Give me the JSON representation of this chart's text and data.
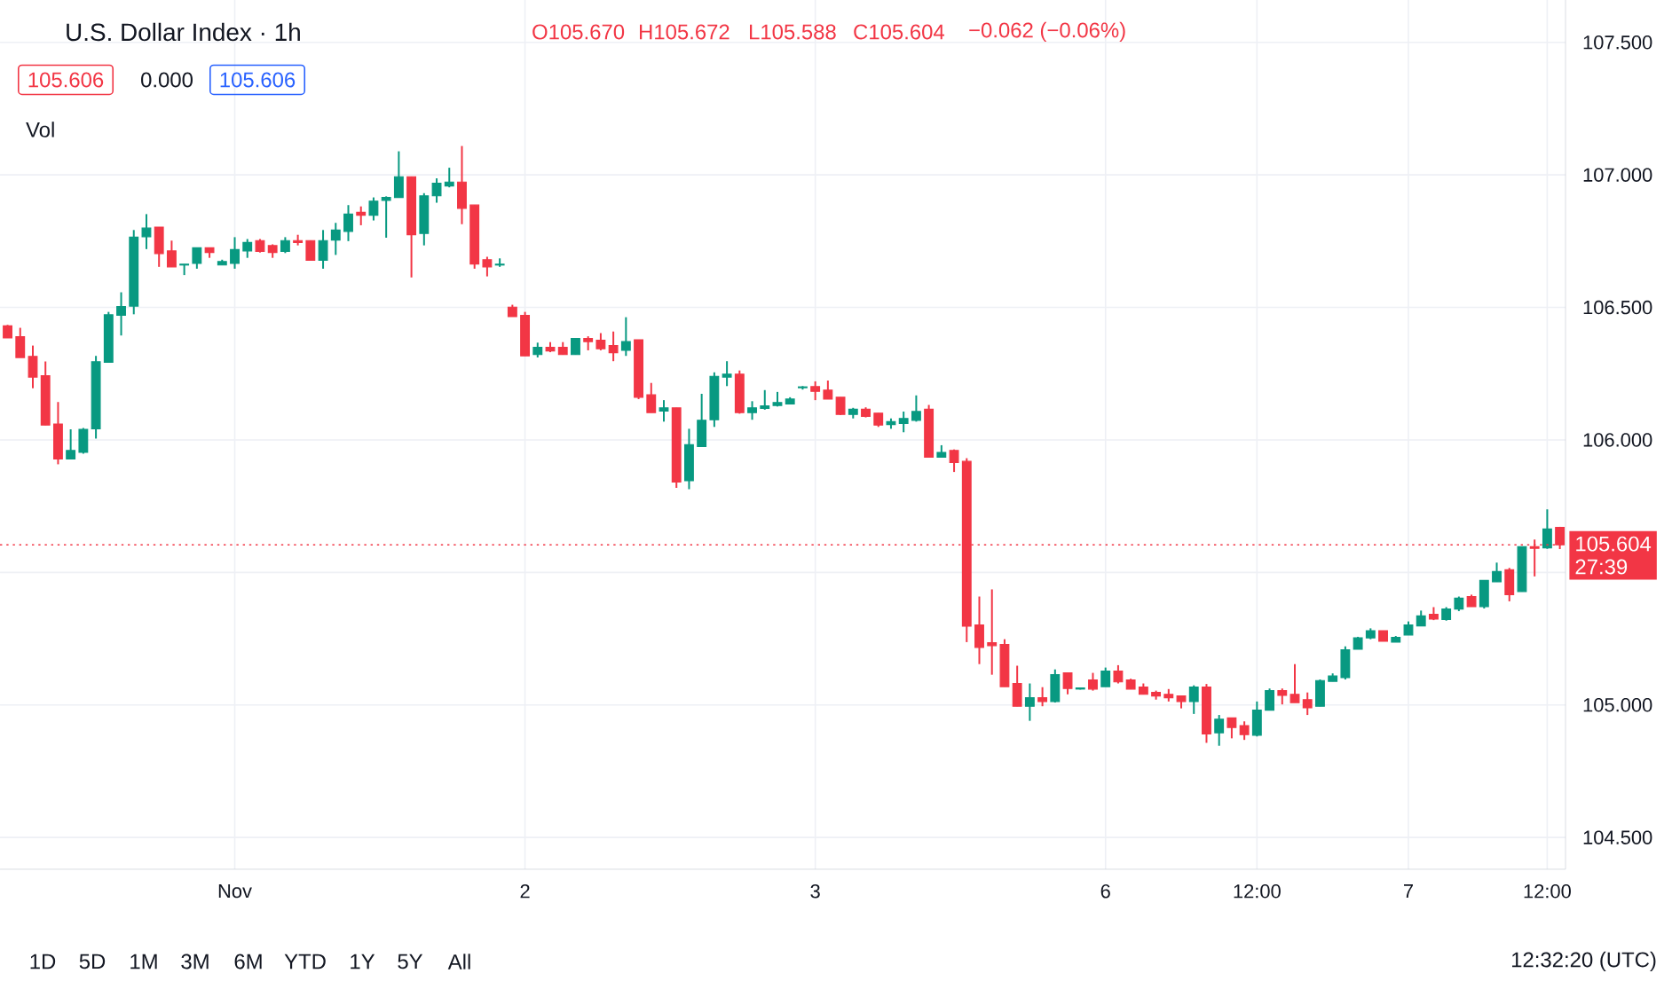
{
  "chart_data": {
    "type": "candlestick",
    "title": "U.S. Dollar Index · 1h",
    "categories": [
      null,
      null,
      null,
      null,
      null,
      null,
      null,
      null,
      null,
      null,
      null,
      null,
      null,
      null,
      null,
      null,
      null,
      null,
      "Nov",
      null,
      null,
      null,
      null,
      null,
      null,
      null,
      null,
      null,
      null,
      null,
      null,
      null,
      null,
      null,
      null,
      null,
      null,
      null,
      null,
      null,
      null,
      "2",
      null,
      null,
      null,
      null,
      null,
      null,
      null,
      null,
      null,
      null,
      null,
      null,
      null,
      null,
      null,
      null,
      null,
      null,
      null,
      null,
      null,
      null,
      "3",
      null,
      null,
      null,
      null,
      null,
      null,
      null,
      null,
      null,
      null,
      null,
      null,
      null,
      null,
      null,
      null,
      null,
      null,
      null,
      null,
      null,
      null,
      "6",
      null,
      null,
      null,
      null,
      null,
      null,
      null,
      null,
      null,
      null,
      null,
      "12:00",
      null,
      null,
      null,
      null,
      null,
      null,
      null,
      null,
      null,
      null,
      null,
      "7",
      null,
      null,
      null,
      null,
      null,
      null,
      null,
      null,
      null,
      null,
      "12:00",
      null
    ],
    "ohlc": [
      [
        106.43,
        106.434,
        106.385,
        106.385
      ],
      [
        106.389,
        106.423,
        106.311,
        106.311
      ],
      [
        106.315,
        106.356,
        106.195,
        106.237
      ],
      [
        106.242,
        106.296,
        106.056,
        106.056
      ],
      [
        106.06,
        106.143,
        105.908,
        105.928
      ],
      [
        105.928,
        106.04,
        105.928,
        105.96
      ],
      [
        105.953,
        106.045,
        105.948,
        106.04
      ],
      [
        106.042,
        106.317,
        106.005,
        106.295
      ],
      [
        106.293,
        106.483,
        106.293,
        106.472
      ],
      [
        106.47,
        106.557,
        106.394,
        106.503
      ],
      [
        106.505,
        106.792,
        106.474,
        106.765
      ],
      [
        106.767,
        106.852,
        106.72,
        106.799
      ],
      [
        106.803,
        106.803,
        106.653,
        106.703
      ],
      [
        106.713,
        106.752,
        106.653,
        106.653
      ],
      [
        106.66,
        106.663,
        106.622,
        106.663
      ],
      [
        106.666,
        106.725,
        106.646,
        106.725
      ],
      [
        106.725,
        106.725,
        106.687,
        106.707
      ],
      [
        106.66,
        106.68,
        106.66,
        106.673
      ],
      [
        106.666,
        106.765,
        106.646,
        106.718
      ],
      [
        106.713,
        106.758,
        106.687,
        106.745
      ],
      [
        106.752,
        106.758,
        106.707,
        106.711
      ],
      [
        106.733,
        106.738,
        106.687,
        106.707
      ],
      [
        106.711,
        106.765,
        106.705,
        106.752
      ],
      [
        106.752,
        106.774,
        106.734,
        106.745
      ],
      [
        106.752,
        106.752,
        106.678,
        106.678
      ],
      [
        106.678,
        106.792,
        106.646,
        106.752
      ],
      [
        106.754,
        106.819,
        106.698,
        106.792
      ],
      [
        106.787,
        106.886,
        106.75,
        106.852
      ],
      [
        106.859,
        106.881,
        106.81,
        106.848
      ],
      [
        106.848,
        106.915,
        106.828,
        106.901
      ],
      [
        106.904,
        106.919,
        106.763,
        106.915
      ],
      [
        106.915,
        107.089,
        106.915,
        106.993
      ],
      [
        106.993,
        106.993,
        106.613,
        106.774
      ],
      [
        106.779,
        106.931,
        106.734,
        106.921
      ],
      [
        106.921,
        106.987,
        106.895,
        106.968
      ],
      [
        106.958,
        107.027,
        106.953,
        106.973
      ],
      [
        106.973,
        107.109,
        106.814,
        106.874
      ],
      [
        106.886,
        106.886,
        106.646,
        106.664
      ],
      [
        106.68,
        106.691,
        106.617,
        106.653
      ],
      [
        106.66,
        106.685,
        106.653,
        106.663
      ],
      [
        106.501,
        106.51,
        106.465,
        106.465
      ],
      [
        106.47,
        106.483,
        106.317,
        106.317
      ],
      [
        106.322,
        106.367,
        106.311,
        106.349
      ],
      [
        106.349,
        106.369,
        106.331,
        106.336
      ],
      [
        106.349,
        106.369,
        106.322,
        106.322
      ],
      [
        106.322,
        106.383,
        106.322,
        106.383
      ],
      [
        106.383,
        106.391,
        106.338,
        106.371
      ],
      [
        106.376,
        106.403,
        106.338,
        106.344
      ],
      [
        106.356,
        106.409,
        106.297,
        106.329
      ],
      [
        106.338,
        106.463,
        106.317,
        106.371
      ],
      [
        106.378,
        106.378,
        106.154,
        106.161
      ],
      [
        106.17,
        106.215,
        106.103,
        106.103
      ],
      [
        106.109,
        106.15,
        106.069,
        106.121
      ],
      [
        106.121,
        106.121,
        105.819,
        105.841
      ],
      [
        105.846,
        106.042,
        105.814,
        105.982
      ],
      [
        105.975,
        106.174,
        105.975,
        106.074
      ],
      [
        106.076,
        106.255,
        106.049,
        106.24
      ],
      [
        106.237,
        106.297,
        106.203,
        106.248
      ],
      [
        106.248,
        106.262,
        106.099,
        106.103
      ],
      [
        106.103,
        106.146,
        106.076,
        106.121
      ],
      [
        106.119,
        106.188,
        106.114,
        106.128
      ],
      [
        106.13,
        106.181,
        106.126,
        106.141
      ],
      [
        106.136,
        106.161,
        106.134,
        106.154
      ],
      [
        106.197,
        106.203,
        106.19,
        106.2
      ],
      [
        106.201,
        106.221,
        106.15,
        106.183
      ],
      [
        106.188,
        106.224,
        106.154,
        106.154
      ],
      [
        106.161,
        106.161,
        106.094,
        106.096
      ],
      [
        106.096,
        106.121,
        106.081,
        106.116
      ],
      [
        106.116,
        106.123,
        106.085,
        106.089
      ],
      [
        106.101,
        106.101,
        106.049,
        106.056
      ],
      [
        106.058,
        106.081,
        106.042,
        106.069
      ],
      [
        106.062,
        106.107,
        106.029,
        106.081
      ],
      [
        106.074,
        106.168,
        106.069,
        106.107
      ],
      [
        106.116,
        106.132,
        105.935,
        105.935
      ],
      [
        105.935,
        105.98,
        105.935,
        105.953
      ],
      [
        105.96,
        105.964,
        105.879,
        105.915
      ],
      [
        105.919,
        105.931,
        105.237,
        105.297
      ],
      [
        105.302,
        105.409,
        105.154,
        105.217
      ],
      [
        105.235,
        105.436,
        105.114,
        105.224
      ],
      [
        105.228,
        105.248,
        105.069,
        105.069
      ],
      [
        105.081,
        105.148,
        104.995,
        104.995
      ],
      [
        104.995,
        105.081,
        104.94,
        105.027
      ],
      [
        105.027,
        105.067,
        104.995,
        105.013
      ],
      [
        105.013,
        105.134,
        105.009,
        105.114
      ],
      [
        105.121,
        105.121,
        105.04,
        105.062
      ],
      [
        105.06,
        105.066,
        105.058,
        105.064
      ],
      [
        105.094,
        105.121,
        105.054,
        105.06
      ],
      [
        105.069,
        105.141,
        105.069,
        105.128
      ],
      [
        105.128,
        105.15,
        105.081,
        105.087
      ],
      [
        105.094,
        105.099,
        105.06,
        105.06
      ],
      [
        105.067,
        105.081,
        105.04,
        105.04
      ],
      [
        105.047,
        105.054,
        105.02,
        105.034
      ],
      [
        105.04,
        105.06,
        105.013,
        105.027
      ],
      [
        105.034,
        105.034,
        104.987,
        105.013
      ],
      [
        105.013,
        105.074,
        104.966,
        105.067
      ],
      [
        105.067,
        105.079,
        104.857,
        104.891
      ],
      [
        104.895,
        104.962,
        104.846,
        104.946
      ],
      [
        104.951,
        104.951,
        104.874,
        104.915
      ],
      [
        104.922,
        104.938,
        104.868,
        104.888
      ],
      [
        104.886,
        105.013,
        104.881,
        104.98
      ],
      [
        104.98,
        105.062,
        104.98,
        105.054
      ],
      [
        105.054,
        105.062,
        105.002,
        105.036
      ],
      [
        105.04,
        105.154,
        105.009,
        105.009
      ],
      [
        105.02,
        105.047,
        104.962,
        104.989
      ],
      [
        104.995,
        105.096,
        104.995,
        105.092
      ],
      [
        105.089,
        105.119,
        105.089,
        105.109
      ],
      [
        105.103,
        105.221,
        105.096,
        105.208
      ],
      [
        105.21,
        105.257,
        105.21,
        105.253
      ],
      [
        105.253,
        105.289,
        105.248,
        105.28
      ],
      [
        105.28,
        105.28,
        105.24,
        105.24
      ],
      [
        105.237,
        105.26,
        105.237,
        105.255
      ],
      [
        105.264,
        105.315,
        105.264,
        105.302
      ],
      [
        105.298,
        105.356,
        105.298,
        105.336
      ],
      [
        105.342,
        105.369,
        105.32,
        105.324
      ],
      [
        105.322,
        105.369,
        105.318,
        105.362
      ],
      [
        105.362,
        105.409,
        105.354,
        105.403
      ],
      [
        105.409,
        105.416,
        105.371,
        105.371
      ],
      [
        105.371,
        105.47,
        105.364,
        105.47
      ],
      [
        105.465,
        105.537,
        105.465,
        105.503
      ],
      [
        105.51,
        105.517,
        105.391,
        105.416
      ],
      [
        105.428,
        105.597,
        105.428,
        105.597
      ],
      [
        105.597,
        105.624,
        105.485,
        105.591
      ],
      [
        105.593,
        105.738,
        105.589,
        105.664
      ],
      [
        105.67,
        105.672,
        105.588,
        105.604
      ]
    ],
    "colors": [
      "#f23645",
      "#f23645",
      "#f23645",
      "#f23645",
      "#f23645",
      "#089981",
      "#089981",
      "#089981",
      "#089981",
      "#089981",
      "#089981",
      "#089981",
      "#f23645",
      "#f23645",
      "#089981",
      "#089981",
      "#f23645",
      "#089981",
      "#089981",
      "#089981",
      "#f23645",
      "#f23645",
      "#089981",
      "#f23645",
      "#f23645",
      "#089981",
      "#089981",
      "#089981",
      "#f23645",
      "#089981",
      "#089981",
      "#089981",
      "#f23645",
      "#089981",
      "#089981",
      "#089981",
      "#f23645",
      "#f23645",
      "#f23645",
      "#089981",
      "#f23645",
      "#f23645",
      "#089981",
      "#f23645",
      "#f23645",
      "#089981",
      "#f23645",
      "#f23645",
      "#f23645",
      "#089981",
      "#f23645",
      "#f23645",
      "#089981",
      "#f23645",
      "#089981",
      "#089981",
      "#089981",
      "#089981",
      "#f23645",
      "#089981",
      "#089981",
      "#089981",
      "#089981",
      "#089981",
      "#f23645",
      "#f23645",
      "#f23645",
      "#089981",
      "#f23645",
      "#f23645",
      "#089981",
      "#089981",
      "#089981",
      "#f23645",
      "#089981",
      "#f23645",
      "#f23645",
      "#f23645",
      "#f23645",
      "#f23645",
      "#f23645",
      "#089981",
      "#f23645",
      "#089981",
      "#f23645",
      "#089981",
      "#f23645",
      "#089981",
      "#f23645",
      "#f23645",
      "#f23645",
      "#f23645",
      "#f23645",
      "#f23645",
      "#089981",
      "#f23645",
      "#089981",
      "#f23645",
      "#f23645",
      "#089981",
      "#089981",
      "#f23645",
      "#f23645",
      "#f23645",
      "#089981",
      "#089981",
      "#089981",
      "#089981",
      "#089981",
      "#f23645",
      "#089981",
      "#089981",
      "#089981",
      "#f23645",
      "#089981",
      "#089981",
      "#f23645",
      "#089981",
      "#089981",
      "#f23645",
      "#089981",
      "#f23645",
      "#089981",
      "#f23645"
    ],
    "ylim": [
      104.38,
      107.66
    ],
    "yticks": [
      {
        "value": 104.5,
        "label": "104.500"
      },
      {
        "value": 105.0,
        "label": "105.000"
      },
      {
        "value": 105.5,
        "label": null
      },
      {
        "value": 106.0,
        "label": "106.000"
      },
      {
        "value": 106.5,
        "label": "106.500"
      },
      {
        "value": 107.0,
        "label": "107.000"
      },
      {
        "value": 107.5,
        "label": "107.500"
      }
    ],
    "grid": true,
    "ref_lines": [
      {
        "axis": "y",
        "value": 105.604,
        "label": "105.604",
        "color": "#f23645",
        "line_style": "dotted"
      }
    ],
    "annotations": [
      "O105.670",
      "H105.672",
      "L105.588",
      "C105.604",
      "−0.062 (−0.06%)",
      "105.606",
      "0.000",
      "105.606",
      "Vol",
      "27:39",
      "1D",
      "5D",
      "1M",
      "3M",
      "6M",
      "YTD",
      "1Y",
      "5Y",
      "All",
      "12:32:20 (UTC)"
    ]
  }
}
